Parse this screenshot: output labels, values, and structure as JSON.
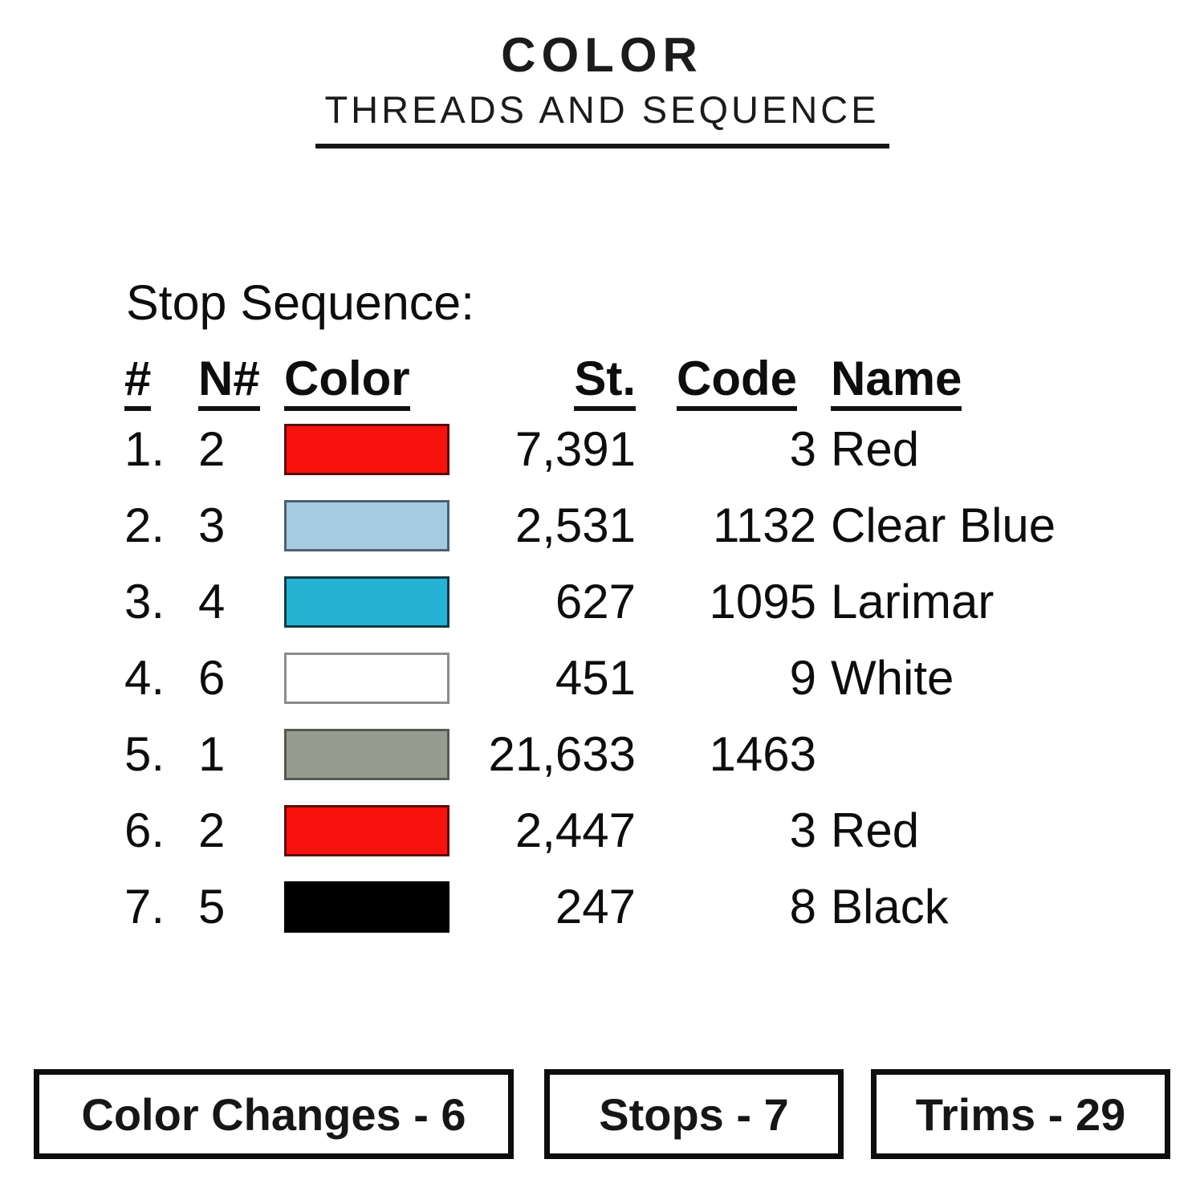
{
  "header": {
    "title": "COLOR",
    "subtitle": "THREADS AND SEQUENCE"
  },
  "stop_sequence": {
    "heading": "Stop Sequence:",
    "columns": [
      "#",
      "N#",
      "Color",
      "St.",
      "Code",
      "Name"
    ],
    "rows": [
      {
        "num": "1.",
        "n": "2",
        "color": "#f8120e",
        "border": "#5c0b07",
        "st": "7,391",
        "code": "3",
        "name": "Red"
      },
      {
        "num": "2.",
        "n": "3",
        "color": "#a5cbe2",
        "border": "#4e5f6e",
        "st": "2,531",
        "code": "1132",
        "name": "Clear Blue"
      },
      {
        "num": "3.",
        "n": "4",
        "color": "#25b2d4",
        "border": "#123a44",
        "st": "627",
        "code": "1095",
        "name": "Larimar"
      },
      {
        "num": "4.",
        "n": "6",
        "color": "#ffffff",
        "border": "#8c8c8c",
        "st": "451",
        "code": "9",
        "name": "White"
      },
      {
        "num": "5.",
        "n": "1",
        "color": "#979c91",
        "border": "#555a50",
        "st": "21,633",
        "code": "1463",
        "name": ""
      },
      {
        "num": "6.",
        "n": "2",
        "color": "#f8120e",
        "border": "#5c0b07",
        "st": "2,447",
        "code": "3",
        "name": "Red"
      },
      {
        "num": "7.",
        "n": "5",
        "color": "#000000",
        "border": "#000000",
        "st": "247",
        "code": "8",
        "name": "Black"
      }
    ]
  },
  "summary": {
    "color_changes": "Color Changes - 6",
    "stops": "Stops - 7",
    "trims": "Trims - 29"
  }
}
